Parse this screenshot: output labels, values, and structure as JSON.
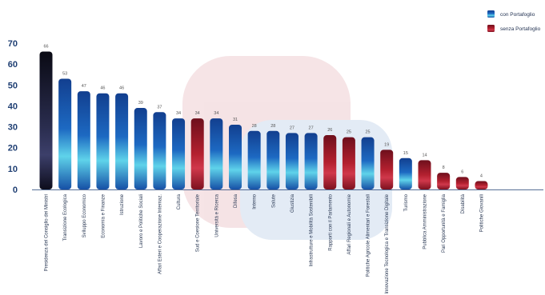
{
  "chart_data": {
    "type": "bar",
    "ylim": [
      0,
      70
    ],
    "yticks": [
      0,
      10,
      20,
      30,
      40,
      50,
      60,
      70
    ],
    "categories": [
      "Presidenza del Consiglio dei Ministri",
      "Transizione Ecologica",
      "Sviluppo Economico",
      "Economia e Finanze",
      "Istruzione",
      "Lavoro e Politiche Sociali",
      "Affari Esteri e Cooperazione Internaz.",
      "Cultura",
      "Sud e Coesione Territoriale",
      "Università e Ricerca",
      "Difesa",
      "Interno",
      "Salute",
      "Giustizia",
      "Infrastrutture e Mobilità Sostenibili",
      "Rapporti con il Parlamento",
      "Affari Regionali e Autonomie",
      "Politiche Agricole Alimentari e Forestali",
      "Innovazione Tecnologica e Transizione Digitale",
      "Turismo",
      "Pubblica Amministrazione",
      "Pari Opportunità e Famiglia",
      "Disabilità",
      "Politiche Giovanili"
    ],
    "values": [
      66,
      53,
      47,
      46,
      46,
      39,
      37,
      34,
      34,
      34,
      31,
      28,
      28,
      27,
      27,
      26,
      25,
      25,
      19,
      15,
      14,
      8,
      6,
      4
    ],
    "groups": [
      "special",
      "con",
      "con",
      "con",
      "con",
      "con",
      "con",
      "con",
      "senza",
      "con",
      "con",
      "con",
      "con",
      "con",
      "con",
      "senza",
      "senza",
      "con",
      "senza",
      "con",
      "senza",
      "senza",
      "senza",
      "senza"
    ],
    "legend": [
      {
        "key": "con",
        "label": "con Portafoglio",
        "color": "#1f5fb3"
      },
      {
        "key": "senza",
        "label": "senza Portafoglio",
        "color": "#a0182a"
      }
    ],
    "legend_position": "top-right",
    "colors": {
      "con_dark": "#123f8f",
      "con_light": "#5fd3ea",
      "senza_dark": "#6e0f1c",
      "senza_light": "#d0384b",
      "special_dark": "#0a0a14",
      "special_light": "#3c3f6a",
      "axis": "#1f3f73"
    },
    "grid": false
  }
}
